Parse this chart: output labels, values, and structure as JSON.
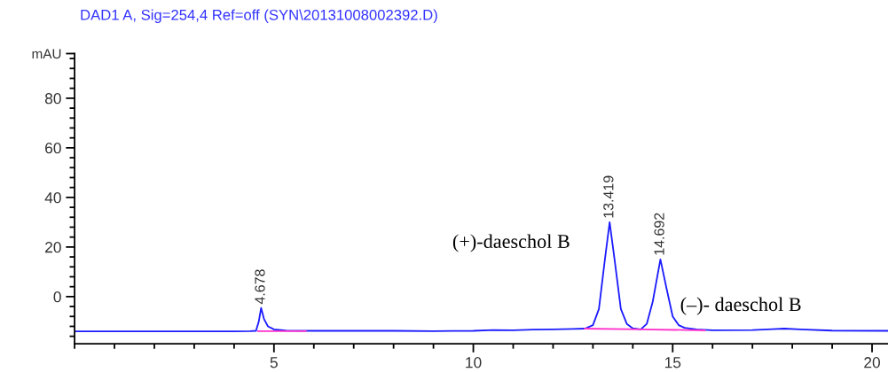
{
  "chart_data": {
    "type": "line",
    "title": "DAD1 A, Sig=254,4 Ref=off (SYN\\20131008002392.D)",
    "xlim": [
      0,
      20.4
    ],
    "ylim": [
      -19,
      98
    ],
    "xticks": [
      5,
      10,
      15,
      20
    ],
    "yticks": [
      0,
      20,
      40,
      60,
      80,
      {
        "value": 98,
        "label": "mAU"
      }
    ],
    "grid": false,
    "legend": false,
    "marker": "none",
    "line_style": "solid",
    "series": [
      {
        "color": "#1a1aff",
        "x": [
          0,
          2,
          4,
          4.4,
          4.55,
          4.62,
          4.678,
          4.75,
          4.85,
          5.0,
          5.3,
          6,
          8,
          9,
          10,
          10.5,
          11,
          11.5,
          12,
          12.5,
          12.8,
          13.0,
          13.15,
          13.3,
          13.419,
          13.55,
          13.7,
          13.85,
          14.0,
          14.2,
          14.35,
          14.5,
          14.692,
          14.85,
          15.0,
          15.15,
          15.3,
          15.6,
          16,
          17,
          17.5,
          17.8,
          18.2,
          19,
          20.4
        ],
        "values": [
          -14,
          -14,
          -14,
          -13.9,
          -13.8,
          -10,
          -4.6,
          -9,
          -12,
          -13.2,
          -13.7,
          -13.8,
          -13.8,
          -13.9,
          -13.8,
          -13.5,
          -13.6,
          -13.3,
          -13.2,
          -13,
          -12.9,
          -11.5,
          -5,
          15,
          30,
          14,
          -5,
          -11,
          -12.8,
          -13.2,
          -11,
          -2,
          15,
          3,
          -8,
          -11.5,
          -12.6,
          -13.2,
          -13.6,
          -13.5,
          -13.1,
          -12.9,
          -13.2,
          -13.7,
          -13.8
        ]
      },
      {
        "color": "#ff33cc",
        "x": [
          4.6,
          5.8,
          9,
          12.8,
          14.2,
          15.8
        ],
        "values": [
          -13.9,
          -13.9,
          null,
          -12.9,
          -13.2,
          -13.6
        ]
      }
    ],
    "annotations": [
      {
        "text": "4.678",
        "x": 4.678,
        "y": -4.6
      },
      {
        "text": "13.419",
        "x": 13.419,
        "y": 30
      },
      {
        "text": "14.692",
        "x": 14.692,
        "y": 15
      },
      {
        "text": "(+)-daeschol B",
        "x": 13.419,
        "y": 30
      },
      {
        "text": "(–)- daeschol B",
        "x": 14.692,
        "y": 15
      }
    ]
  }
}
